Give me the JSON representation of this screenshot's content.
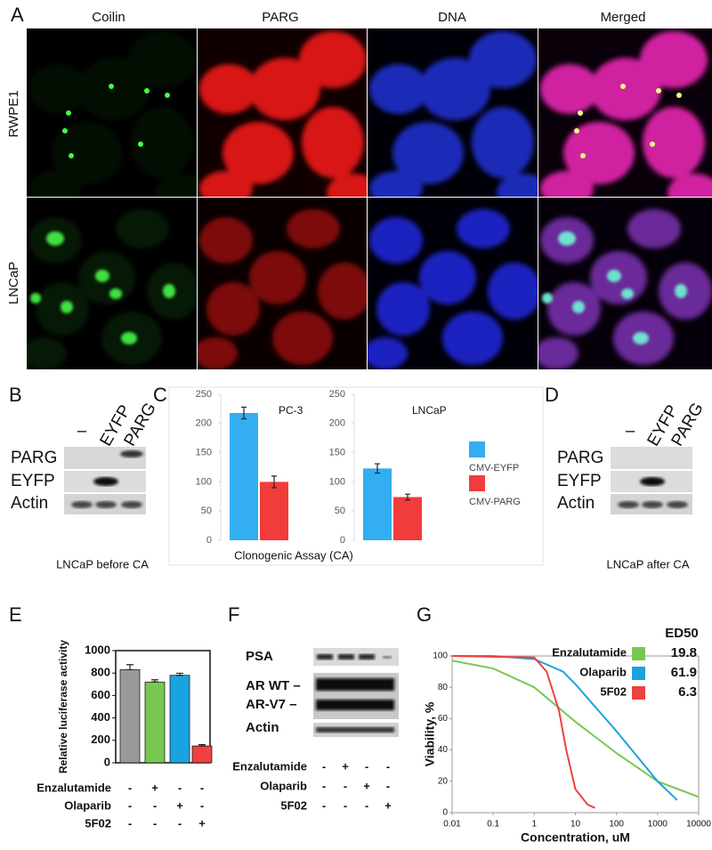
{
  "panels": {
    "A": {
      "label": "A",
      "columns": [
        "Coilin",
        "PARG",
        "DNA",
        "Merged"
      ],
      "rows": [
        "RWPE1",
        "LNCaP"
      ]
    },
    "B": {
      "label": "B",
      "lanes": [
        "–",
        "EYFP",
        "PARG"
      ],
      "rows": [
        "PARG",
        "EYFP",
        "Actin"
      ],
      "caption": "LNCaP before CA"
    },
    "C": {
      "label": "C",
      "caption": "Clonogenic Assay (CA)"
    },
    "D": {
      "label": "D",
      "lanes": [
        "–",
        "EYFP",
        "PARG"
      ],
      "rows": [
        "PARG",
        "EYFP",
        "Actin"
      ],
      "caption": "LNCaP after CA"
    },
    "E": {
      "label": "E",
      "treatments": [
        {
          "name": "Enzalutamide",
          "signs": [
            "-",
            "+",
            "-",
            "-"
          ]
        },
        {
          "name": "Olaparib",
          "signs": [
            "-",
            "-",
            "+",
            "-"
          ]
        },
        {
          "name": "5F02",
          "signs": [
            "-",
            "-",
            "-",
            "+"
          ]
        }
      ]
    },
    "F": {
      "label": "F",
      "rows": [
        "PSA",
        "AR WT –",
        "AR-V7 –",
        "Actin"
      ],
      "treatments": [
        {
          "name": "Enzalutamide",
          "signs": [
            "-",
            "+",
            "-",
            "-"
          ]
        },
        {
          "name": "Olaparib",
          "signs": [
            "-",
            "-",
            "+",
            "-"
          ]
        },
        {
          "name": "5F02",
          "signs": [
            "-",
            "-",
            "-",
            "+"
          ]
        }
      ]
    },
    "G": {
      "label": "G"
    }
  },
  "chart_data": [
    {
      "type": "bar",
      "categories": [
        "PC-3",
        "LNCaP"
      ],
      "ylim": [
        0,
        250
      ],
      "yticks": [
        0,
        50,
        100,
        150,
        200,
        250
      ],
      "series": [
        {
          "name": "CMV-EYFP",
          "color": "#33aef0",
          "values": [
            218,
            123
          ],
          "errors": [
            10,
            8
          ]
        },
        {
          "name": "CMV-PARG",
          "color": "#f23b3b",
          "values": [
            100,
            74
          ],
          "errors": [
            10,
            5
          ]
        }
      ]
    },
    {
      "type": "bar",
      "y_label": "Relative luciferase activity",
      "ylim": [
        0,
        1000
      ],
      "yticks": [
        0,
        200,
        400,
        600,
        800,
        1000
      ],
      "values": [
        830,
        720,
        780,
        150
      ],
      "errors": [
        45,
        20,
        18,
        12
      ],
      "colors": [
        "#999999",
        "#78c850",
        "#1aa3e0",
        "#f04040"
      ]
    },
    {
      "type": "line",
      "x_label": "Concentration, uM",
      "y_label": "Viability, %",
      "xlog": true,
      "xlim": [
        0.01,
        10000
      ],
      "xticks": [
        0.01,
        0.1,
        1,
        10,
        100,
        1000,
        10000
      ],
      "ylim": [
        0,
        100
      ],
      "yticks": [
        0,
        20,
        40,
        60,
        80,
        100
      ],
      "legend_title": "ED50",
      "series": [
        {
          "name": "Enzalutamide",
          "color": "#78c850",
          "ed50": 19.8,
          "x": [
            0.01,
            0.1,
            1,
            10,
            100,
            1000,
            10000
          ],
          "values": [
            97,
            92,
            80,
            58,
            38,
            20,
            10
          ]
        },
        {
          "name": "Olaparib",
          "color": "#1aa3e0",
          "ed50": 61.9,
          "x": [
            0.01,
            0.1,
            1,
            5,
            10,
            100,
            1000,
            3000
          ],
          "values": [
            100,
            100,
            98,
            90,
            82,
            52,
            20,
            8
          ]
        },
        {
          "name": "5F02",
          "color": "#f04040",
          "ed50": 6.3,
          "x": [
            0.01,
            1,
            2,
            4,
            6,
            10,
            20,
            30
          ],
          "values": [
            100,
            99,
            90,
            65,
            40,
            15,
            5,
            3
          ]
        }
      ]
    }
  ]
}
